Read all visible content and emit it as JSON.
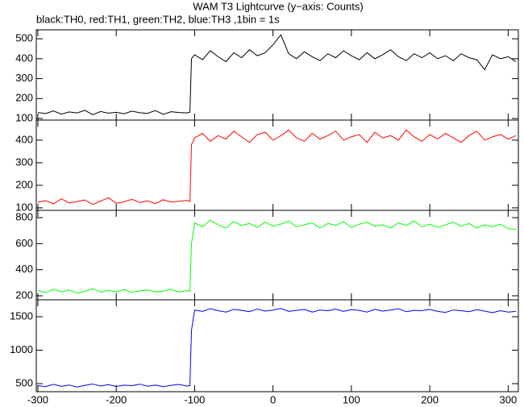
{
  "chart_data": [
    {
      "type": "line",
      "title": "WAM T3 Lightcurve (y−axis: Counts)",
      "subtitle": "black:TH0, red:TH1, green:TH2, blue:TH3 ,1bin = 1s",
      "x": [
        -300,
        -290,
        -280,
        -270,
        -260,
        -250,
        -240,
        -230,
        -220,
        -210,
        -200,
        -190,
        -180,
        -170,
        -160,
        -150,
        -140,
        -130,
        -120,
        -110,
        -106,
        -104,
        -100,
        -90,
        -80,
        -70,
        -60,
        -50,
        -40,
        -30,
        -20,
        -10,
        0,
        10,
        20,
        30,
        40,
        50,
        60,
        70,
        80,
        90,
        100,
        110,
        120,
        130,
        140,
        150,
        160,
        170,
        180,
        190,
        200,
        210,
        220,
        230,
        240,
        250,
        260,
        270,
        280,
        290,
        300,
        310
      ],
      "series": [
        {
          "color": "#000000",
          "values": [
            130,
            125,
            138,
            122,
            133,
            128,
            141,
            119,
            135,
            127,
            131,
            124,
            137,
            129,
            126,
            140,
            121,
            134,
            130,
            128,
            132,
            400,
            420,
            395,
            440,
            410,
            385,
            430,
            405,
            445,
            415,
            430,
            470,
            520,
            425,
            400,
            435,
            410,
            390,
            425,
            405,
            440,
            415,
            395,
            430,
            400,
            420,
            445,
            410,
            390,
            425,
            405,
            430,
            400,
            415,
            390,
            425,
            405,
            395,
            345,
            420,
            400,
            410,
            385
          ]
        }
      ],
      "xlim": [
        -302,
        313
      ],
      "xticks": [
        -300,
        -200,
        -100,
        0,
        100,
        200,
        300
      ],
      "ylim": [
        92,
        545
      ],
      "yticks": [
        100,
        200,
        300,
        400,
        500
      ]
    },
    {
      "type": "line",
      "x": [
        -300,
        -290,
        -280,
        -270,
        -260,
        -250,
        -240,
        -230,
        -220,
        -210,
        -200,
        -190,
        -180,
        -170,
        -160,
        -150,
        -140,
        -130,
        -120,
        -110,
        -106,
        -104,
        -100,
        -90,
        -80,
        -70,
        -60,
        -50,
        -40,
        -30,
        -20,
        -10,
        0,
        10,
        20,
        30,
        40,
        50,
        60,
        70,
        80,
        90,
        100,
        110,
        120,
        130,
        140,
        150,
        160,
        170,
        180,
        190,
        200,
        210,
        220,
        230,
        240,
        250,
        260,
        270,
        280,
        290,
        300,
        310
      ],
      "series": [
        {
          "color": "#ff0000",
          "values": [
            125,
            132,
            118,
            140,
            122,
            128,
            135,
            115,
            130,
            145,
            120,
            127,
            138,
            124,
            131,
            119,
            136,
            126,
            129,
            133,
            128,
            380,
            410,
            430,
            395,
            420,
            405,
            440,
            415,
            390,
            425,
            435,
            400,
            420,
            445,
            410,
            395,
            430,
            405,
            420,
            440,
            400,
            415,
            425,
            390,
            435,
            410,
            420,
            400,
            445,
            415,
            395,
            425,
            405,
            430,
            410,
            390,
            420,
            440,
            400,
            415,
            425,
            405,
            420
          ]
        }
      ],
      "xlim": [
        -302,
        313
      ],
      "xticks": [
        -300,
        -200,
        -100,
        0,
        100,
        200,
        300
      ],
      "ylim": [
        89,
        489
      ],
      "yticks": [
        100,
        200,
        300,
        400
      ]
    },
    {
      "type": "line",
      "x": [
        -300,
        -290,
        -280,
        -270,
        -260,
        -250,
        -240,
        -230,
        -220,
        -210,
        -200,
        -190,
        -180,
        -170,
        -160,
        -150,
        -140,
        -130,
        -120,
        -110,
        -106,
        -104,
        -100,
        -90,
        -80,
        -70,
        -60,
        -50,
        -40,
        -30,
        -20,
        -10,
        0,
        10,
        20,
        30,
        40,
        50,
        60,
        70,
        80,
        90,
        100,
        110,
        120,
        130,
        140,
        150,
        160,
        170,
        180,
        190,
        200,
        210,
        220,
        230,
        240,
        250,
        260,
        270,
        280,
        290,
        300,
        310
      ],
      "series": [
        {
          "color": "#00ff00",
          "values": [
            240,
            225,
            250,
            230,
            245,
            220,
            235,
            255,
            228,
            242,
            232,
            248,
            226,
            238,
            244,
            230,
            236,
            250,
            228,
            240,
            235,
            600,
            760,
            730,
            780,
            745,
            720,
            770,
            740,
            755,
            725,
            765,
            735,
            750,
            775,
            730,
            745,
            760,
            720,
            755,
            740,
            770,
            725,
            750,
            765,
            735,
            745,
            720,
            760,
            740,
            775,
            730,
            750,
            725,
            745,
            765,
            735,
            755,
            720,
            745,
            730,
            750,
            715,
            710
          ]
        }
      ],
      "xlim": [
        -302,
        313
      ],
      "xticks": [
        -300,
        -200,
        -100,
        0,
        100,
        200,
        300
      ],
      "ylim": [
        169,
        856
      ],
      "yticks": [
        200,
        400,
        600,
        800
      ]
    },
    {
      "type": "line",
      "x": [
        -300,
        -290,
        -280,
        -270,
        -260,
        -250,
        -240,
        -230,
        -220,
        -210,
        -200,
        -190,
        -180,
        -170,
        -160,
        -150,
        -140,
        -130,
        -120,
        -110,
        -106,
        -104,
        -100,
        -90,
        -80,
        -70,
        -60,
        -50,
        -40,
        -30,
        -20,
        -10,
        0,
        10,
        20,
        30,
        40,
        50,
        60,
        70,
        80,
        90,
        100,
        110,
        120,
        130,
        140,
        150,
        160,
        170,
        180,
        190,
        200,
        210,
        220,
        230,
        240,
        250,
        260,
        270,
        280,
        290,
        300,
        310
      ],
      "series": [
        {
          "color": "#0000ff",
          "values": [
            470,
            455,
            490,
            460,
            480,
            450,
            475,
            495,
            465,
            485,
            458,
            478,
            470,
            492,
            462,
            480,
            455,
            475,
            488,
            465,
            470,
            1300,
            1600,
            1580,
            1620,
            1590,
            1570,
            1610,
            1595,
            1575,
            1615,
            1585,
            1600,
            1625,
            1580,
            1595,
            1610,
            1570,
            1600,
            1590,
            1615,
            1580,
            1605,
            1595,
            1570,
            1610,
            1585,
            1600,
            1620,
            1575,
            1595,
            1590,
            1610,
            1580,
            1565,
            1600,
            1590,
            1575,
            1605,
            1585,
            1560,
            1590,
            1570,
            1580
          ]
        }
      ],
      "xlim": [
        -302,
        313
      ],
      "xticks": [
        -300,
        -200,
        -100,
        0,
        100,
        200,
        300
      ],
      "ylim": [
        380,
        1753
      ],
      "yticks": [
        500,
        1000,
        1500
      ]
    }
  ]
}
